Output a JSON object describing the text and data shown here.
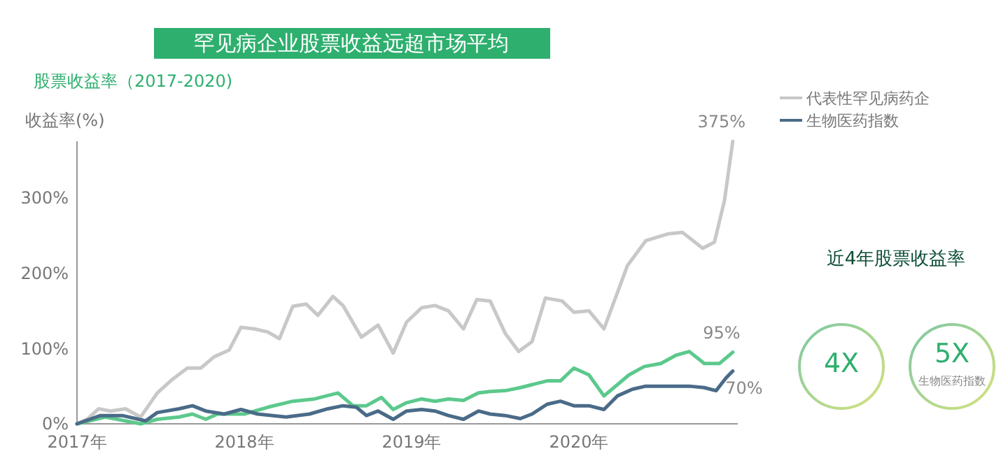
{
  "chart_data": [
    {
      "type": "line",
      "title": "罕见病企业股票收益远超市场平均",
      "subtitle": "股票收益率（2017-2020)",
      "ylabel": "收益率(%)",
      "xlim": [
        2017,
        2020.95
      ],
      "xticks": [
        {
          "value": 2017,
          "label": "2017年"
        },
        {
          "value": 2018,
          "label": "2018年"
        },
        {
          "value": 2019,
          "label": "2019年"
        },
        {
          "value": 2020,
          "label": "2020年"
        }
      ],
      "ylim": [
        0,
        375
      ],
      "yticks": [
        {
          "value": 0,
          "label": "0%"
        },
        {
          "value": 100,
          "label": "100%"
        },
        {
          "value": 200,
          "label": "200%"
        },
        {
          "value": 300,
          "label": "300%"
        }
      ],
      "grid": false,
      "legend": "top right",
      "marker": "none",
      "line_style": "solid",
      "series": [
        {
          "name": "代表性罕见病药企",
          "color": "#c8c8c8",
          "x": [
            2017,
            2017.06,
            2017.13,
            2017.2,
            2017.29,
            2017.38,
            2017.48,
            2017.57,
            2017.66,
            2017.74,
            2017.82,
            2017.91,
            2017.98,
            2018.06,
            2018.14,
            2018.21,
            2018.29,
            2018.37,
            2018.44,
            2018.53,
            2018.59,
            2018.7,
            2018.8,
            2018.89,
            2018.97,
            2019.06,
            2019.14,
            2019.22,
            2019.31,
            2019.39,
            2019.47,
            2019.56,
            2019.64,
            2019.72,
            2019.8,
            2019.9,
            2019.97,
            2020.06,
            2020.15,
            2020.29,
            2020.4,
            2020.53,
            2020.62,
            2020.74,
            2020.81,
            2020.87,
            2020.92
          ],
          "values": [
            0,
            6,
            20,
            17,
            20,
            9,
            41,
            59,
            74,
            74,
            89,
            98,
            128,
            126,
            122,
            113,
            156,
            159,
            144,
            169,
            157,
            115,
            131,
            94,
            135,
            154,
            157,
            150,
            126,
            165,
            163,
            120,
            96,
            109,
            167,
            163,
            148,
            150,
            126,
            210,
            243,
            252,
            254,
            233,
            241,
            296,
            375
          ]
        },
        {
          "color": "#5cc98c",
          "x": [
            2017,
            2017.17,
            2017.38,
            2017.48,
            2017.61,
            2017.69,
            2017.77,
            2017.84,
            2018,
            2018.14,
            2018.29,
            2018.42,
            2018.56,
            2018.65,
            2018.73,
            2018.82,
            2018.89,
            2018.97,
            2019.06,
            2019.14,
            2019.22,
            2019.31,
            2019.4,
            2019.47,
            2019.56,
            2019.65,
            2019.72,
            2019.81,
            2019.89,
            2019.97,
            2020.06,
            2020.15,
            2020.3,
            2020.39,
            2020.49,
            2020.58,
            2020.66,
            2020.75,
            2020.84,
            2020.92
          ],
          "values": [
            0,
            9,
            0,
            6,
            9,
            13,
            6,
            13,
            13,
            22,
            30,
            33,
            41,
            24,
            24,
            35,
            19,
            28,
            33,
            30,
            33,
            31,
            41,
            43,
            44,
            48,
            52,
            57,
            57,
            74,
            65,
            37,
            65,
            76,
            80,
            91,
            96,
            80,
            80,
            95
          ]
        },
        {
          "name": "生物医药指数",
          "color": "#4a6b88",
          "x": [
            2017,
            2017.14,
            2017.27,
            2017.41,
            2017.48,
            2017.61,
            2017.69,
            2017.77,
            2017.88,
            2017.98,
            2018.08,
            2018.25,
            2018.39,
            2018.5,
            2018.59,
            2018.67,
            2018.73,
            2018.8,
            2018.89,
            2018.97,
            2019.06,
            2019.14,
            2019.22,
            2019.31,
            2019.4,
            2019.47,
            2019.56,
            2019.65,
            2019.72,
            2019.81,
            2019.89,
            2019.97,
            2020.06,
            2020.15,
            2020.23,
            2020.32,
            2020.4,
            2020.53,
            2020.66,
            2020.75,
            2020.82,
            2020.88,
            2020.92
          ],
          "values": [
            0,
            11,
            11,
            4,
            15,
            20,
            24,
            17,
            13,
            19,
            13,
            9,
            13,
            20,
            24,
            22,
            11,
            17,
            6,
            17,
            19,
            17,
            11,
            6,
            17,
            13,
            11,
            7,
            13,
            26,
            30,
            24,
            24,
            19,
            37,
            46,
            50,
            50,
            50,
            48,
            44,
            61,
            70
          ]
        }
      ],
      "annotations": [
        "375%",
        "95%",
        "70%"
      ]
    },
    {
      "type": "other",
      "title": "近4年股票收益率",
      "annotations": [
        "4X",
        "5X",
        "生物医药指数"
      ]
    }
  ]
}
